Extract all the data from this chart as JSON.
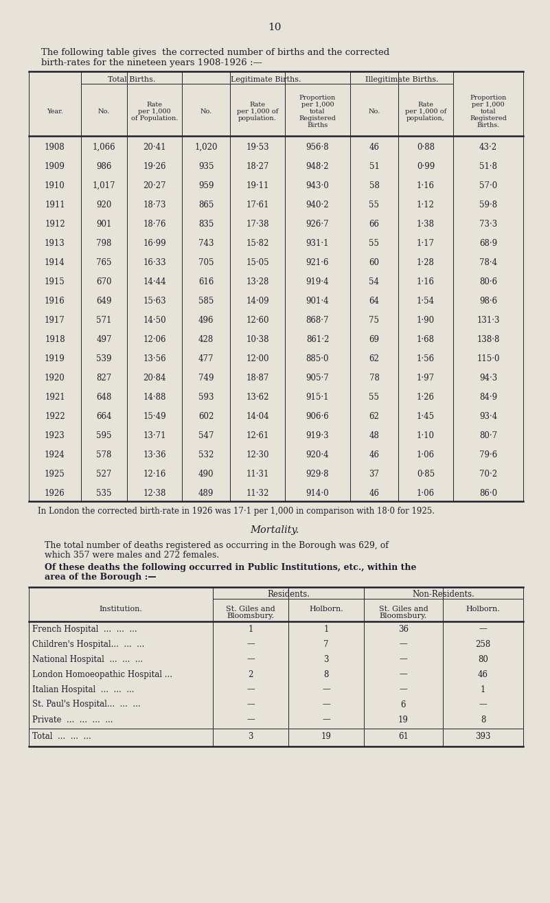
{
  "page_number": "10",
  "intro_text_1": "The following table gives  the corrected number of births and the corrected",
  "intro_text_2": "birth-rates for the nineteen years 1908-1926 :—",
  "bg_color": "#e8e3d8",
  "text_color": "#1e1e2e",
  "birth_col_boundaries": [
    42,
    118,
    185,
    265,
    335,
    415,
    510,
    580,
    660,
    762
  ],
  "birth_col_headers_row2": [
    "Year.",
    "No.",
    "Rate\nper 1,000\nof Population.",
    "No.",
    "Rate\nper 1,000 of\npopulation.",
    "Proportion\nper 1,000\ntotal\nRegistered\nBirths",
    "No.",
    "Rate\nper 1,000 of\npopulation,",
    "Proportion\nper 1,000\ntotal\nRegistered\nBirths."
  ],
  "birth_rows": [
    [
      "1908",
      "1,066",
      "20·41",
      "1,020",
      "19·53",
      "956·8",
      "46",
      "0·88",
      "43·2"
    ],
    [
      "1909",
      "986",
      "19·26",
      "935",
      "18·27",
      "948·2",
      "51",
      "0·99",
      "51·8"
    ],
    [
      "1910",
      "1,017",
      "20·27",
      "959",
      "19·11",
      "943·0",
      "58",
      "1·16",
      "57·0"
    ],
    [
      "1911",
      "920",
      "18·73",
      "865",
      "17·61",
      "940·2",
      "55",
      "1·12",
      "59·8"
    ],
    [
      "1912",
      "901",
      "18·76",
      "835",
      "17·38",
      "926·7",
      "66",
      "1·38",
      "73·3"
    ],
    [
      "1913",
      "798",
      "16·99",
      "743",
      "15·82",
      "931·1",
      "55",
      "1·17",
      "68·9"
    ],
    [
      "1914",
      "765",
      "16·33",
      "705",
      "15·05",
      "921·6",
      "60",
      "1·28",
      "78·4"
    ],
    [
      "1915",
      "670",
      "14·44",
      "616",
      "13·28",
      "919·4",
      "54",
      "1·16",
      "80·6"
    ],
    [
      "1916",
      "649",
      "15·63",
      "585",
      "14·09",
      "901·4",
      "64",
      "1·54",
      "98·6"
    ],
    [
      "1917",
      "571",
      "14·50",
      "496",
      "12·60",
      "868·7",
      "75",
      "1·90",
      "131·3"
    ],
    [
      "1918",
      "497",
      "12·06",
      "428",
      "10·38",
      "861·2",
      "69",
      "1·68",
      "138·8"
    ],
    [
      "1919",
      "539",
      "13·56",
      "477",
      "12·00",
      "885·0",
      "62",
      "1·56",
      "115·0"
    ],
    [
      "1920",
      "827",
      "20·84",
      "749",
      "18·87",
      "905·7",
      "78",
      "1·97",
      "94·3"
    ],
    [
      "1921",
      "648",
      "14·88",
      "593",
      "13·62",
      "915·1",
      "55",
      "1·26",
      "84·9"
    ],
    [
      "1922",
      "664",
      "15·49",
      "602",
      "14·04",
      "906·6",
      "62",
      "1·45",
      "93·4"
    ],
    [
      "1923",
      "595",
      "13·71",
      "547",
      "12·61",
      "919·3",
      "48",
      "1·10",
      "80·7"
    ],
    [
      "1924",
      "578",
      "13·36",
      "532",
      "12·30",
      "920·4",
      "46",
      "1·06",
      "79·6"
    ],
    [
      "1925",
      "527",
      "12·16",
      "490",
      "11·31",
      "929·8",
      "37",
      "0·85",
      "70·2"
    ],
    [
      "1926",
      "535",
      "12·38",
      "489",
      "11·32",
      "914·0",
      "46",
      "1·06",
      "86·0"
    ]
  ],
  "london_note": "In London the corrected birth-rate in 1926 was 17·1 per 1,000 in comparison with 18·0 for 1925.",
  "mortality_title": "Mortality.",
  "mortality_text1a": "The total number of deaths registered as occurring in the Borough was 629, of",
  "mortality_text1b": "which 357 were males and 272 females.",
  "mortality_text2a": "Of these deaths the following occurred in Public Institutions, etc., within the",
  "mortality_text2b": "area of the Borough :—",
  "inst_col_boundaries": [
    42,
    310,
    420,
    530,
    645,
    762
  ],
  "inst_header_row2": [
    "Institution.",
    "St. Giles and\nBloomsbury.",
    "Holborn.",
    "St. Giles and\nBloomsbury.",
    "Holborn."
  ],
  "inst_rows": [
    [
      "French Hospital  ...  ...  ...",
      "1",
      "1",
      "36",
      "—"
    ],
    [
      "Children's Hospital...  ...  ...",
      "—",
      "7",
      "—",
      "258"
    ],
    [
      "National Hospital  ...  ...  ...",
      "—",
      "3",
      "—",
      "80"
    ],
    [
      "London Homoeopathic Hospital ...",
      "2",
      "8",
      "—",
      "46"
    ],
    [
      "Italian Hospital  ...  ...  ...",
      "—",
      "—",
      "—",
      "1"
    ],
    [
      "St. Paul's Hospital...  ...  ...",
      "—",
      "—",
      "6",
      "—"
    ],
    [
      "Private  ...  ...  ...  ...",
      "—",
      "—",
      "19",
      "8"
    ]
  ],
  "inst_total_row": [
    "Total  ...  ...  ...",
    "3",
    "19",
    "61",
    "393"
  ]
}
